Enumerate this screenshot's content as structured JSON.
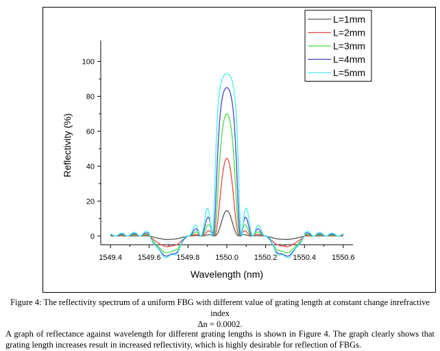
{
  "chart_data": {
    "type": "line",
    "xlabel": "Wavelength (nm)",
    "ylabel": "Reflectivity (%)",
    "xlim": [
      1549.35,
      1550.65
    ],
    "ylim": [
      -5,
      112
    ],
    "xticks": [
      "1549.4",
      "1549.6",
      "1549.8",
      "1550.0",
      "1550.2",
      "1550.4",
      "1550.6"
    ],
    "yticks": [
      "0",
      "20",
      "40",
      "60",
      "80",
      "100"
    ],
    "center_wavelength": 1550.0,
    "legend_position": "top-right",
    "grid": false,
    "series": [
      {
        "name": "L=1mm",
        "color": "#555555",
        "peak": 14.5
      },
      {
        "name": "L=2mm",
        "color": "#ee4444",
        "peak": 44.5
      },
      {
        "name": "L=3mm",
        "color": "#44dd44",
        "peak": 70
      },
      {
        "name": "L=4mm",
        "color": "#4444cc",
        "peak": 85
      },
      {
        "name": "L=5mm",
        "color": "#44eeee",
        "peak": 93
      }
    ]
  },
  "caption": {
    "line1": "Figure 4: The reflectivity spectrum of a uniform FBG with different value of grating length at constant change inrefractive index",
    "line2": "Δn = 0.0002."
  },
  "paragraph": "A graph of reflectance against wavelength for different grating lengths is shown in Figure 4. The graph clearly shows that grating length increases result in increased reflectivity, which is highly desirable for reflection of FBGs."
}
